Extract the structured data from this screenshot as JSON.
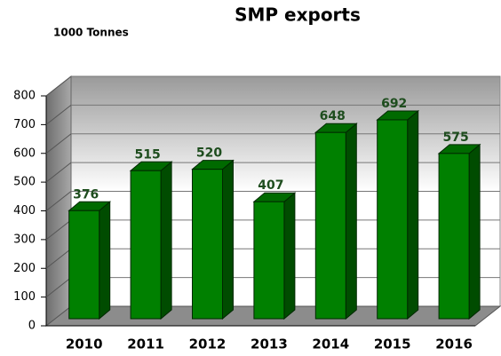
{
  "chart_data": {
    "type": "bar",
    "title": "SMP exports",
    "subtitle": "1000 Tonnes",
    "categories": [
      "2010",
      "2011",
      "2012",
      "2013",
      "2014",
      "2015",
      "2016"
    ],
    "values": [
      376,
      515,
      520,
      407,
      648,
      692,
      575
    ],
    "color": "#008000",
    "ylim": [
      0,
      800
    ],
    "yticks": [
      0,
      100,
      200,
      300,
      400,
      500,
      600,
      700,
      800
    ],
    "grid": true
  }
}
